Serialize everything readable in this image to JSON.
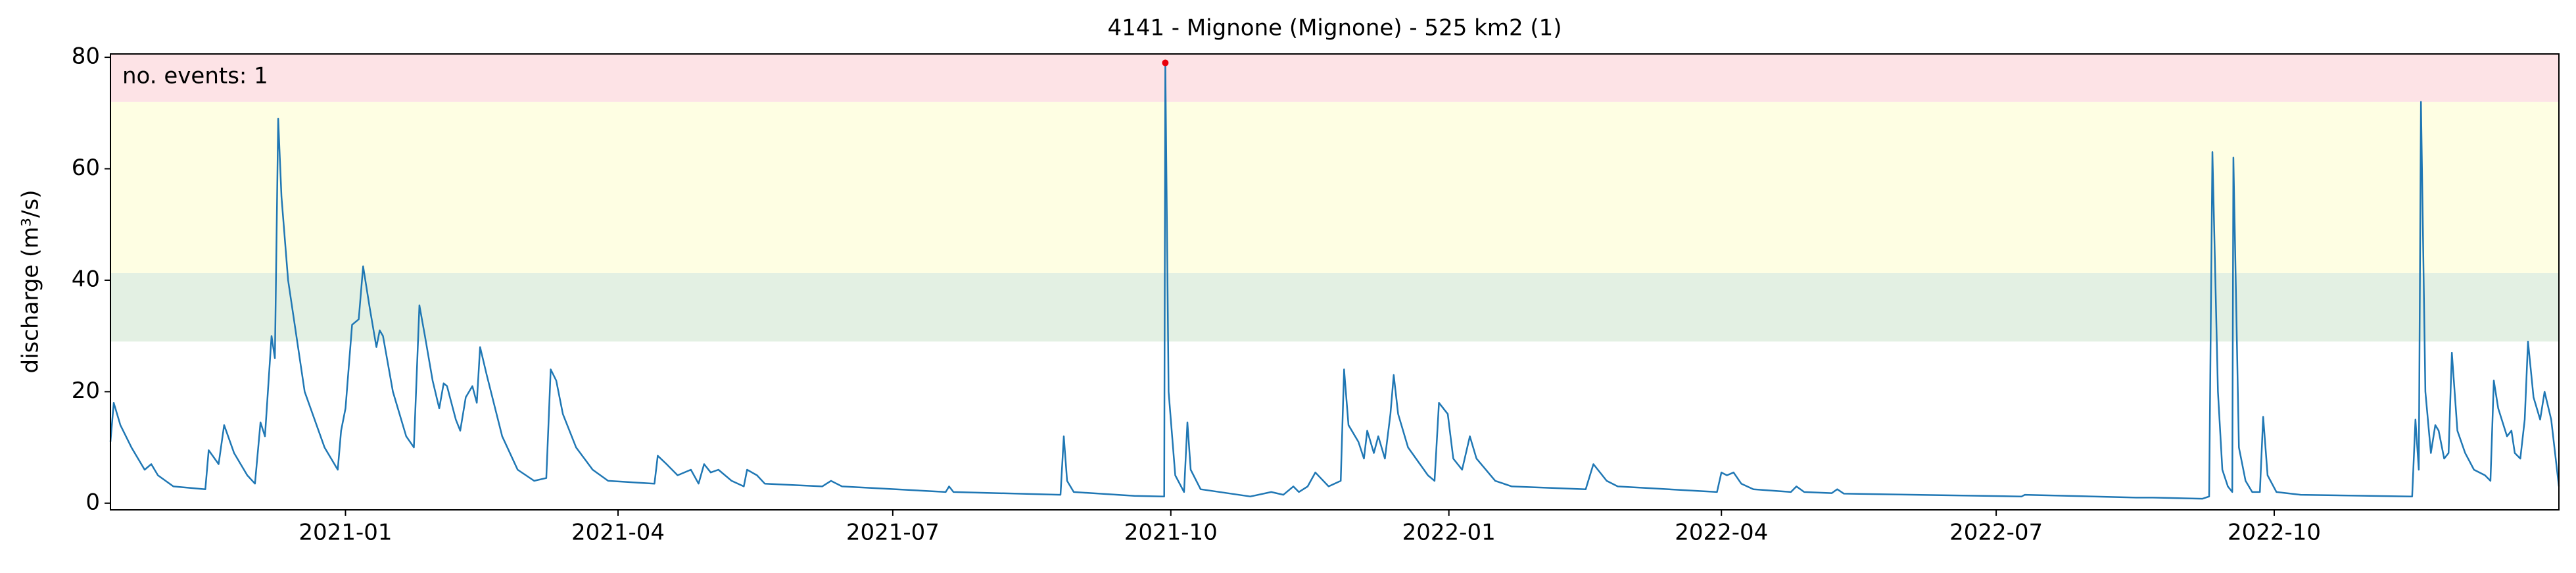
{
  "chart_data": {
    "type": "line",
    "title": "4141 - Mignone (Mignone) - 525 km2 (1)",
    "ylabel": "discharge (m³/s)",
    "annotation": "no. events: 1",
    "annotation_color": "#e8000b",
    "color": "#1f77b4",
    "xlim": [
      2020.787,
      2023.006
    ],
    "ylim": [
      -1.2,
      80.6
    ],
    "yticks": [
      0,
      20,
      40,
      60,
      80
    ],
    "xticks": [
      {
        "value": 2021.0,
        "label": "2021-01"
      },
      {
        "value": 2021.247,
        "label": "2021-04"
      },
      {
        "value": 2021.496,
        "label": "2021-07"
      },
      {
        "value": 2021.748,
        "label": "2021-10"
      },
      {
        "value": 2022.0,
        "label": "2022-01"
      },
      {
        "value": 2022.247,
        "label": "2022-04"
      },
      {
        "value": 2022.496,
        "label": "2022-07"
      },
      {
        "value": 2022.748,
        "label": "2022-10"
      }
    ],
    "bands": [
      {
        "from": 29,
        "to": 41.3,
        "color": "#e3f0e3"
      },
      {
        "from": 41.3,
        "to": 72,
        "color": "#fefee3"
      },
      {
        "from": 72,
        "to": 80.6,
        "color": "#fde3e6"
      }
    ],
    "events": {
      "x": [
        2021.743
      ],
      "values": [
        79
      ],
      "color": "#e8000b"
    },
    "x": [
      2020.787,
      2020.79,
      2020.796,
      2020.806,
      2020.818,
      2020.824,
      2020.83,
      2020.844,
      2020.873,
      2020.876,
      2020.885,
      2020.89,
      2020.899,
      2020.911,
      2020.918,
      2020.923,
      2020.927,
      2020.933,
      2020.936,
      2020.939,
      2020.942,
      2020.948,
      2020.963,
      2020.981,
      2020.993,
      2020.996,
      2021.0,
      2021.006,
      2021.012,
      2021.016,
      2021.022,
      2021.028,
      2021.031,
      2021.034,
      2021.043,
      2021.055,
      2021.062,
      2021.067,
      2021.072,
      2021.079,
      2021.085,
      2021.089,
      2021.092,
      2021.1,
      2021.104,
      2021.109,
      2021.115,
      2021.119,
      2021.122,
      2021.128,
      2021.142,
      2021.156,
      2021.171,
      2021.182,
      2021.186,
      2021.191,
      2021.197,
      2021.209,
      2021.224,
      2021.238,
      2021.28,
      2021.283,
      2021.291,
      2021.301,
      2021.313,
      2021.32,
      2021.325,
      2021.331,
      2021.338,
      2021.35,
      2021.361,
      2021.364,
      2021.373,
      2021.38,
      2021.432,
      2021.44,
      2021.45,
      2021.499,
      2021.544,
      2021.547,
      2021.551,
      2021.648,
      2021.651,
      2021.654,
      2021.66,
      2021.715,
      2021.742,
      2021.743,
      2021.746,
      2021.752,
      2021.76,
      2021.763,
      2021.766,
      2021.775,
      2021.82,
      2021.839,
      2021.85,
      2021.859,
      2021.864,
      2021.872,
      2021.879,
      2021.891,
      2021.902,
      2021.905,
      2021.909,
      2021.918,
      2021.923,
      2021.926,
      2021.932,
      2021.936,
      2021.942,
      2021.947,
      2021.95,
      2021.954,
      2021.963,
      2021.981,
      2021.987,
      2021.991,
      2021.999,
      2022.004,
      2022.012,
      2022.019,
      2022.025,
      2022.042,
      2022.057,
      2022.124,
      2022.131,
      2022.143,
      2022.153,
      2022.243,
      2022.247,
      2022.252,
      2022.258,
      2022.265,
      2022.276,
      2022.31,
      2022.315,
      2022.322,
      2022.347,
      2022.352,
      2022.358,
      2022.519,
      2022.522,
      2022.623,
      2022.638,
      2022.683,
      2022.689,
      2022.692,
      2022.697,
      2022.701,
      2022.706,
      2022.71,
      2022.711,
      2022.716,
      2022.722,
      2022.728,
      2022.735,
      2022.738,
      2022.742,
      2022.75,
      2022.772,
      2022.873,
      2022.876,
      2022.879,
      2022.881,
      2022.885,
      2022.89,
      2022.894,
      2022.897,
      2022.902,
      2022.906,
      2022.909,
      2022.914,
      2022.921,
      2022.929,
      2022.939,
      2022.944,
      2022.947,
      2022.951,
      2022.959,
      2022.963,
      2022.966,
      2022.971,
      2022.975,
      2022.978,
      2022.983,
      2022.989,
      2022.993,
      2022.999,
      2023.006
    ],
    "values": [
      11,
      18,
      14,
      10,
      6,
      7,
      5,
      3,
      2.5,
      9.5,
      7,
      14,
      9,
      5,
      3.5,
      14.5,
      12,
      30,
      26,
      69,
      55,
      40,
      20,
      10,
      6,
      13,
      17,
      32,
      33,
      42.5,
      35,
      28,
      31,
      30,
      20,
      12,
      10,
      35.5,
      30,
      22,
      17,
      21.5,
      21,
      15,
      13,
      19,
      21,
      18,
      28,
      23,
      12,
      6,
      4,
      4.5,
      24,
      22,
      16,
      10,
      6,
      4,
      3.5,
      8.5,
      7,
      5,
      6,
      3.5,
      7,
      5.5,
      6,
      4,
      3,
      6,
      5,
      3.5,
      3,
      4,
      3,
      2.5,
      2,
      3,
      2,
      1.5,
      12,
      4,
      2,
      1.3,
      1.2,
      79,
      20,
      5,
      2,
      14.5,
      6,
      2.5,
      1.2,
      2,
      1.5,
      3,
      2,
      3,
      5.5,
      3,
      4,
      24,
      14,
      11,
      8,
      13,
      9,
      12,
      8,
      16,
      23,
      16,
      10,
      5,
      4,
      18,
      16,
      8,
      6,
      12,
      8,
      4,
      3,
      2.5,
      7,
      4,
      3,
      2,
      5.5,
      5,
      5.5,
      3.5,
      2.5,
      2,
      3,
      2,
      1.8,
      2.5,
      1.7,
      1.2,
      1.5,
      1,
      1,
      0.8,
      1.2,
      63,
      20,
      6,
      3,
      2,
      62,
      10,
      4,
      2,
      2,
      15.5,
      5,
      2,
      1.5,
      1.2,
      15,
      6,
      72,
      20,
      9,
      14,
      13,
      8,
      9,
      27,
      13,
      9,
      6,
      5,
      4,
      22,
      17,
      12,
      13,
      9,
      8,
      15,
      29,
      19,
      15,
      20,
      15,
      3
    ]
  }
}
